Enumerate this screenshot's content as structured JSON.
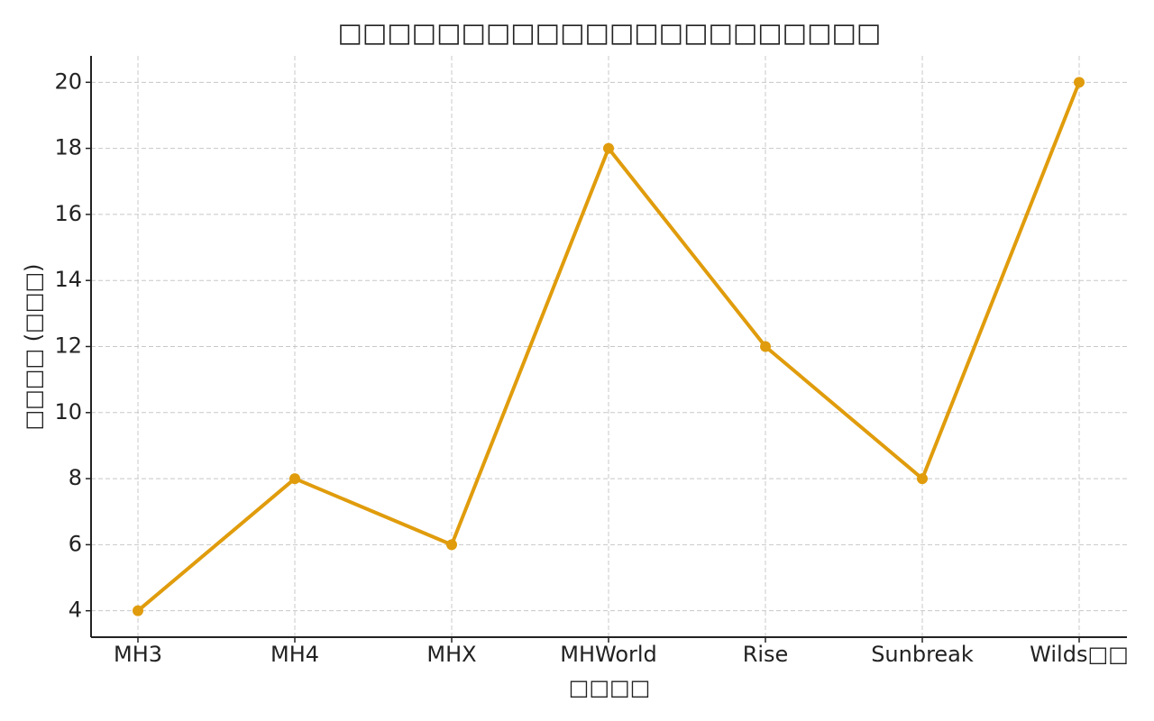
{
  "chart_data": {
    "type": "line",
    "title": "□□□□□□□□□□□□□□□□□□□□□□",
    "x_label": "□□□□",
    "y_label": "□□□□ (□□□)",
    "categories": [
      "MH3",
      "MH4",
      "MHX",
      "MHWorld",
      "Rise",
      "Sunbreak",
      "Wilds□□"
    ],
    "series": [
      {
        "name": "□□□□",
        "color": "#e09c0c",
        "values": [
          4,
          8,
          6,
          18,
          12,
          8,
          20
        ]
      }
    ],
    "ylim": [
      3.2,
      20.8
    ],
    "yticks": [
      4,
      6,
      8,
      10,
      12,
      14,
      16,
      18,
      20
    ],
    "grid": true,
    "legend": false
  }
}
